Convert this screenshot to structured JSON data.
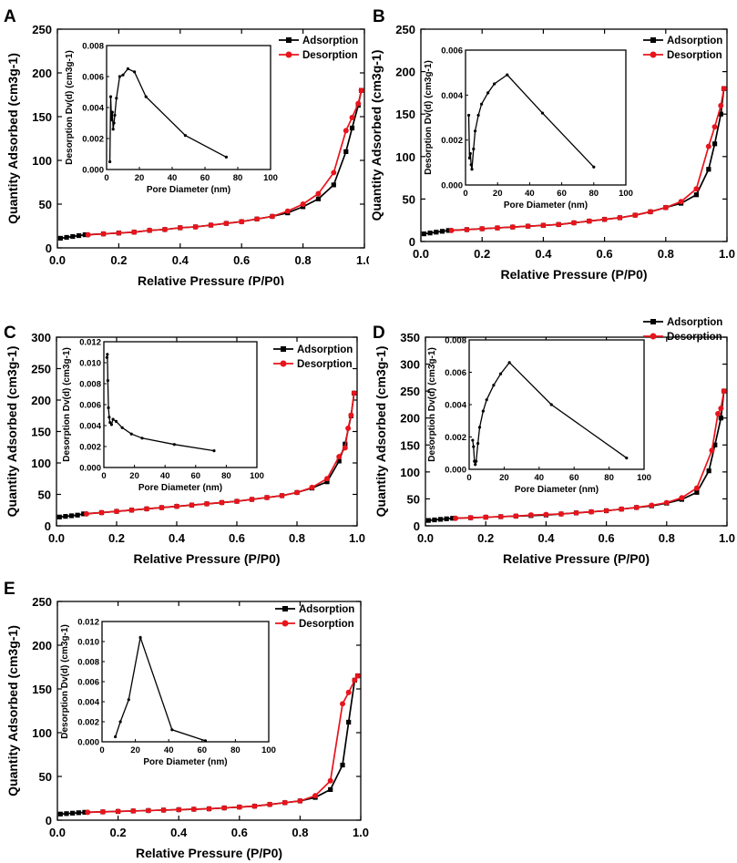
{
  "chart_data": [
    {
      "type": "line",
      "panel": "A",
      "title": "",
      "xlabel": "Relative Pressure (P/P0)",
      "ylabel": "Quantity Adsorbed (cm3g-1)",
      "xlim": [
        0,
        1.0
      ],
      "ylim": [
        0,
        250
      ],
      "xticks": [
        "0.0",
        "0.2",
        "0.4",
        "0.6",
        "0.8",
        "1.0"
      ],
      "yticks": [
        "0",
        "50",
        "100",
        "150",
        "200",
        "250"
      ],
      "legend": [
        "Adsorption",
        "Desorption"
      ],
      "legend_position": "top-right",
      "series": [
        {
          "name": "Adsorption",
          "color": "#000000",
          "marker": "square",
          "x": [
            0.01,
            0.03,
            0.05,
            0.07,
            0.09,
            0.15,
            0.2,
            0.25,
            0.3,
            0.35,
            0.4,
            0.45,
            0.5,
            0.55,
            0.6,
            0.65,
            0.7,
            0.75,
            0.8,
            0.85,
            0.9,
            0.94,
            0.96,
            0.98,
            0.99
          ],
          "y": [
            11,
            12,
            13,
            14,
            15,
            16,
            17,
            18,
            20,
            21,
            23,
            24,
            26,
            28,
            30,
            33,
            36,
            40,
            47,
            56,
            72,
            110,
            137,
            163,
            180
          ]
        },
        {
          "name": "Desorption",
          "color": "#e8141c",
          "marker": "circle",
          "x": [
            0.99,
            0.98,
            0.96,
            0.94,
            0.9,
            0.85,
            0.8,
            0.75,
            0.7,
            0.65,
            0.6,
            0.55,
            0.5,
            0.45,
            0.4,
            0.35,
            0.3,
            0.25,
            0.2,
            0.15,
            0.1
          ],
          "y": [
            180,
            165,
            149,
            134,
            86,
            62,
            50,
            42,
            36,
            33,
            30,
            28,
            26,
            24,
            23,
            21,
            20,
            18,
            17,
            16,
            15
          ]
        }
      ],
      "inset": {
        "xlabel": "Pore Diameter (nm)",
        "ylabel": "Desorption Dv(d) (cm3g-1)",
        "xlim": [
          0,
          100
        ],
        "ylim": [
          0,
          0.008
        ],
        "xticks": [
          "0",
          "20",
          "40",
          "60",
          "80",
          "100"
        ],
        "yticks": [
          "0.000",
          "0.002",
          "0.004",
          "0.006",
          "0.008"
        ],
        "x": [
          2,
          2.5,
          3,
          3.5,
          4,
          4.5,
          5,
          6,
          8,
          10,
          13,
          17,
          24,
          48,
          73
        ],
        "y": [
          0.0005,
          0.0047,
          0.0032,
          0.0037,
          0.0026,
          0.003,
          0.0035,
          0.0046,
          0.006,
          0.0061,
          0.0065,
          0.0063,
          0.0047,
          0.0022,
          0.0008
        ]
      }
    },
    {
      "type": "line",
      "panel": "B",
      "title": "",
      "xlabel": "Relative Pressure (P/P0)",
      "ylabel": "Quantity Adsorbed (cm3g-1)",
      "xlim": [
        0,
        1.0
      ],
      "ylim": [
        0,
        250
      ],
      "xticks": [
        "0.0",
        "0.2",
        "0.4",
        "0.6",
        "0.8",
        "1.0"
      ],
      "yticks": [
        "0",
        "50",
        "100",
        "150",
        "200",
        "250"
      ],
      "legend": [
        "Adsorption",
        "Desorption"
      ],
      "legend_position": "top-right",
      "series": [
        {
          "name": "Adsorption",
          "color": "#000000",
          "marker": "square",
          "x": [
            0.01,
            0.03,
            0.05,
            0.07,
            0.09,
            0.15,
            0.2,
            0.25,
            0.3,
            0.35,
            0.4,
            0.45,
            0.5,
            0.55,
            0.6,
            0.65,
            0.7,
            0.75,
            0.8,
            0.85,
            0.9,
            0.94,
            0.96,
            0.98,
            0.99
          ],
          "y": [
            9,
            10,
            11,
            12,
            13,
            14,
            15,
            16,
            17,
            18,
            19,
            20,
            22,
            24,
            26,
            28,
            31,
            35,
            40,
            45,
            55,
            85,
            115,
            150,
            180
          ]
        },
        {
          "name": "Desorption",
          "color": "#e8141c",
          "marker": "circle",
          "x": [
            0.99,
            0.98,
            0.96,
            0.94,
            0.9,
            0.85,
            0.8,
            0.75,
            0.7,
            0.65,
            0.6,
            0.55,
            0.5,
            0.45,
            0.4,
            0.35,
            0.3,
            0.25,
            0.2,
            0.15,
            0.1
          ],
          "y": [
            180,
            160,
            135,
            112,
            62,
            47,
            40,
            35,
            31,
            28,
            26,
            24,
            22,
            20,
            19,
            18,
            17,
            16,
            15,
            14,
            13
          ]
        }
      ],
      "inset": {
        "xlabel": "Pore Diameter (nm)",
        "ylabel": "Desorption Dv(d) (cm3g-1)",
        "xlim": [
          0,
          100
        ],
        "ylim": [
          0,
          0.006
        ],
        "xticks": [
          "0",
          "20",
          "40",
          "60",
          "80",
          "100"
        ],
        "yticks": [
          "0.000",
          "0.002",
          "0.004",
          "0.006"
        ],
        "x": [
          2,
          2.5,
          3,
          3.5,
          4,
          5,
          6,
          8,
          10,
          14,
          18,
          26,
          48,
          80
        ],
        "y": [
          0.0031,
          0.0012,
          0.0014,
          0.0009,
          0.0007,
          0.0016,
          0.0024,
          0.0031,
          0.0036,
          0.0041,
          0.0045,
          0.0049,
          0.0032,
          0.0008
        ]
      }
    },
    {
      "type": "line",
      "panel": "C",
      "title": "",
      "xlabel": "Relative Pressure (P/P0)",
      "ylabel": "Quantity Adsorbed (cm3g-1)",
      "xlim": [
        0,
        1.0
      ],
      "ylim": [
        0,
        300
      ],
      "xticks": [
        "0.0",
        "0.2",
        "0.4",
        "0.6",
        "0.8",
        "1.0"
      ],
      "yticks": [
        "0",
        "50",
        "100",
        "150",
        "200",
        "250",
        "300"
      ],
      "legend": [
        "Adsorption",
        "Desorption"
      ],
      "legend_position": "top-right",
      "series": [
        {
          "name": "Adsorption",
          "color": "#000000",
          "marker": "square",
          "x": [
            0.01,
            0.03,
            0.05,
            0.07,
            0.09,
            0.15,
            0.2,
            0.25,
            0.3,
            0.35,
            0.4,
            0.45,
            0.5,
            0.55,
            0.6,
            0.65,
            0.7,
            0.75,
            0.8,
            0.85,
            0.9,
            0.94,
            0.96,
            0.98,
            0.99
          ],
          "y": [
            14,
            15,
            16,
            17,
            19,
            21,
            23,
            25,
            27,
            29,
            31,
            33,
            35,
            37,
            39,
            42,
            45,
            48,
            53,
            60,
            70,
            103,
            130,
            175,
            211
          ]
        },
        {
          "name": "Desorption",
          "color": "#e8141c",
          "marker": "circle",
          "x": [
            0.99,
            0.98,
            0.97,
            0.96,
            0.94,
            0.9,
            0.85,
            0.8,
            0.75,
            0.7,
            0.65,
            0.6,
            0.55,
            0.5,
            0.45,
            0.4,
            0.35,
            0.3,
            0.25,
            0.2,
            0.15,
            0.1
          ],
          "y": [
            211,
            176,
            155,
            124,
            110,
            75,
            61,
            53,
            48,
            45,
            42,
            39,
            37,
            35,
            33,
            31,
            29,
            27,
            25,
            23,
            21,
            19
          ]
        }
      ],
      "inset": {
        "xlabel": "Pore Diameter (nm)",
        "ylabel": "Desorption Dv(d) (cm3g-1)",
        "xlim": [
          0,
          100
        ],
        "ylim": [
          0,
          0.012
        ],
        "xticks": [
          "0",
          "20",
          "40",
          "60",
          "80",
          "100"
        ],
        "yticks": [
          "0.000",
          "0.002",
          "0.004",
          "0.006",
          "0.008",
          "0.010",
          "0.012"
        ],
        "x": [
          2,
          2.3,
          2.6,
          3,
          3.5,
          4,
          5,
          6,
          8,
          12,
          18,
          25,
          46,
          72
        ],
        "y": [
          0.0105,
          0.0108,
          0.0083,
          0.0057,
          0.0048,
          0.0043,
          0.0041,
          0.0046,
          0.0044,
          0.0038,
          0.0032,
          0.0028,
          0.0022,
          0.0016
        ]
      }
    },
    {
      "type": "line",
      "panel": "D",
      "title": "",
      "xlabel": "Relative Pressure (P/P0)",
      "ylabel": "Quantity Adsorbed (cm3g-1)",
      "xlim": [
        0,
        1.0
      ],
      "ylim": [
        0,
        350
      ],
      "xticks": [
        "0.0",
        "0.2",
        "0.4",
        "0.6",
        "0.8",
        "1.0"
      ],
      "yticks": [
        "0",
        "50",
        "100",
        "150",
        "200",
        "250",
        "300",
        "350"
      ],
      "legend": [
        "Adsorption",
        "Desorption"
      ],
      "legend_position": "top-right",
      "series": [
        {
          "name": "Adsorption",
          "color": "#000000",
          "marker": "square",
          "x": [
            0.01,
            0.03,
            0.05,
            0.07,
            0.09,
            0.15,
            0.2,
            0.25,
            0.3,
            0.35,
            0.4,
            0.45,
            0.5,
            0.55,
            0.6,
            0.65,
            0.7,
            0.75,
            0.8,
            0.85,
            0.9,
            0.94,
            0.96,
            0.98,
            0.99
          ],
          "y": [
            10,
            11,
            12,
            13,
            14,
            15,
            16,
            17,
            18,
            19,
            20,
            22,
            24,
            26,
            28,
            31,
            34,
            37,
            42,
            49,
            62,
            102,
            150,
            200,
            250
          ]
        },
        {
          "name": "Desorption",
          "color": "#e8141c",
          "marker": "circle",
          "x": [
            0.99,
            0.98,
            0.97,
            0.95,
            0.9,
            0.85,
            0.8,
            0.75,
            0.7,
            0.65,
            0.6,
            0.55,
            0.5,
            0.45,
            0.4,
            0.35,
            0.3,
            0.25,
            0.2,
            0.15,
            0.1
          ],
          "y": [
            250,
            218,
            208,
            140,
            70,
            52,
            43,
            38,
            34,
            31,
            28,
            26,
            24,
            22,
            21,
            20,
            18,
            17,
            16,
            15,
            14
          ]
        }
      ],
      "inset": {
        "xlabel": "Pore Diameter (nm)",
        "ylabel": "Desorption Dv(d) (cm3g-1)",
        "xlim": [
          0,
          100
        ],
        "ylim": [
          0,
          0.008
        ],
        "xticks": [
          "0",
          "20",
          "40",
          "60",
          "80",
          "100"
        ],
        "yticks": [
          "0.000",
          "0.002",
          "0.004",
          "0.006",
          "0.008"
        ],
        "x": [
          2,
          2.5,
          3,
          3.5,
          4,
          5,
          6,
          8,
          10,
          14,
          18,
          23,
          47,
          90
        ],
        "y": [
          0.0018,
          0.0014,
          0.0005,
          0.0003,
          0.0005,
          0.0016,
          0.0026,
          0.0036,
          0.0043,
          0.0052,
          0.0059,
          0.0066,
          0.004,
          0.0007
        ]
      }
    },
    {
      "type": "line",
      "panel": "E",
      "title": "",
      "xlabel": "Relative Pressure (P/P0)",
      "ylabel": "Quantity Adsorbed (cm3g-1)",
      "xlim": [
        0,
        1.0
      ],
      "ylim": [
        0,
        250
      ],
      "xticks": [
        "0.0",
        "0.2",
        "0.4",
        "0.6",
        "0.8",
        "1.0"
      ],
      "yticks": [
        "0",
        "50",
        "100",
        "150",
        "200",
        "250"
      ],
      "legend": [
        "Adsorption",
        "Desorption"
      ],
      "legend_position": "top-right",
      "series": [
        {
          "name": "Adsorption",
          "color": "#000000",
          "marker": "square",
          "x": [
            0.01,
            0.03,
            0.05,
            0.07,
            0.09,
            0.15,
            0.2,
            0.25,
            0.3,
            0.35,
            0.4,
            0.45,
            0.5,
            0.55,
            0.6,
            0.65,
            0.7,
            0.75,
            0.8,
            0.85,
            0.9,
            0.94,
            0.96,
            0.98,
            0.99
          ],
          "y": [
            7,
            7.5,
            8,
            8.5,
            9,
            9.5,
            10,
            10.5,
            11,
            11.5,
            12,
            12.5,
            13,
            14,
            15,
            16,
            18,
            20,
            22,
            26,
            35,
            63,
            112,
            160,
            165
          ]
        },
        {
          "name": "Desorption",
          "color": "#e8141c",
          "marker": "circle",
          "x": [
            0.99,
            0.98,
            0.96,
            0.94,
            0.9,
            0.85,
            0.8,
            0.75,
            0.7,
            0.65,
            0.6,
            0.55,
            0.5,
            0.45,
            0.4,
            0.35,
            0.3,
            0.25,
            0.2,
            0.15,
            0.1
          ],
          "y": [
            165,
            160,
            146,
            133,
            45,
            28,
            22,
            20,
            18,
            16,
            15,
            14,
            13,
            12.5,
            12,
            11.5,
            11,
            10.5,
            10,
            9.5,
            9
          ]
        }
      ],
      "inset": {
        "xlabel": "Pore Diameter (nm)",
        "ylabel": "Desorption Dv(d) (cm3g-1)",
        "xlim": [
          0,
          100
        ],
        "ylim": [
          0,
          0.012
        ],
        "xticks": [
          "0",
          "20",
          "40",
          "60",
          "80",
          "100"
        ],
        "yticks": [
          "0.000",
          "0.002",
          "0.004",
          "0.006",
          "0.008",
          "0.010",
          "0.012"
        ],
        "x": [
          8,
          11,
          16,
          23,
          42,
          62
        ],
        "y": [
          0.0005,
          0.002,
          0.0042,
          0.0104,
          0.0012,
          0.0001
        ]
      }
    }
  ]
}
